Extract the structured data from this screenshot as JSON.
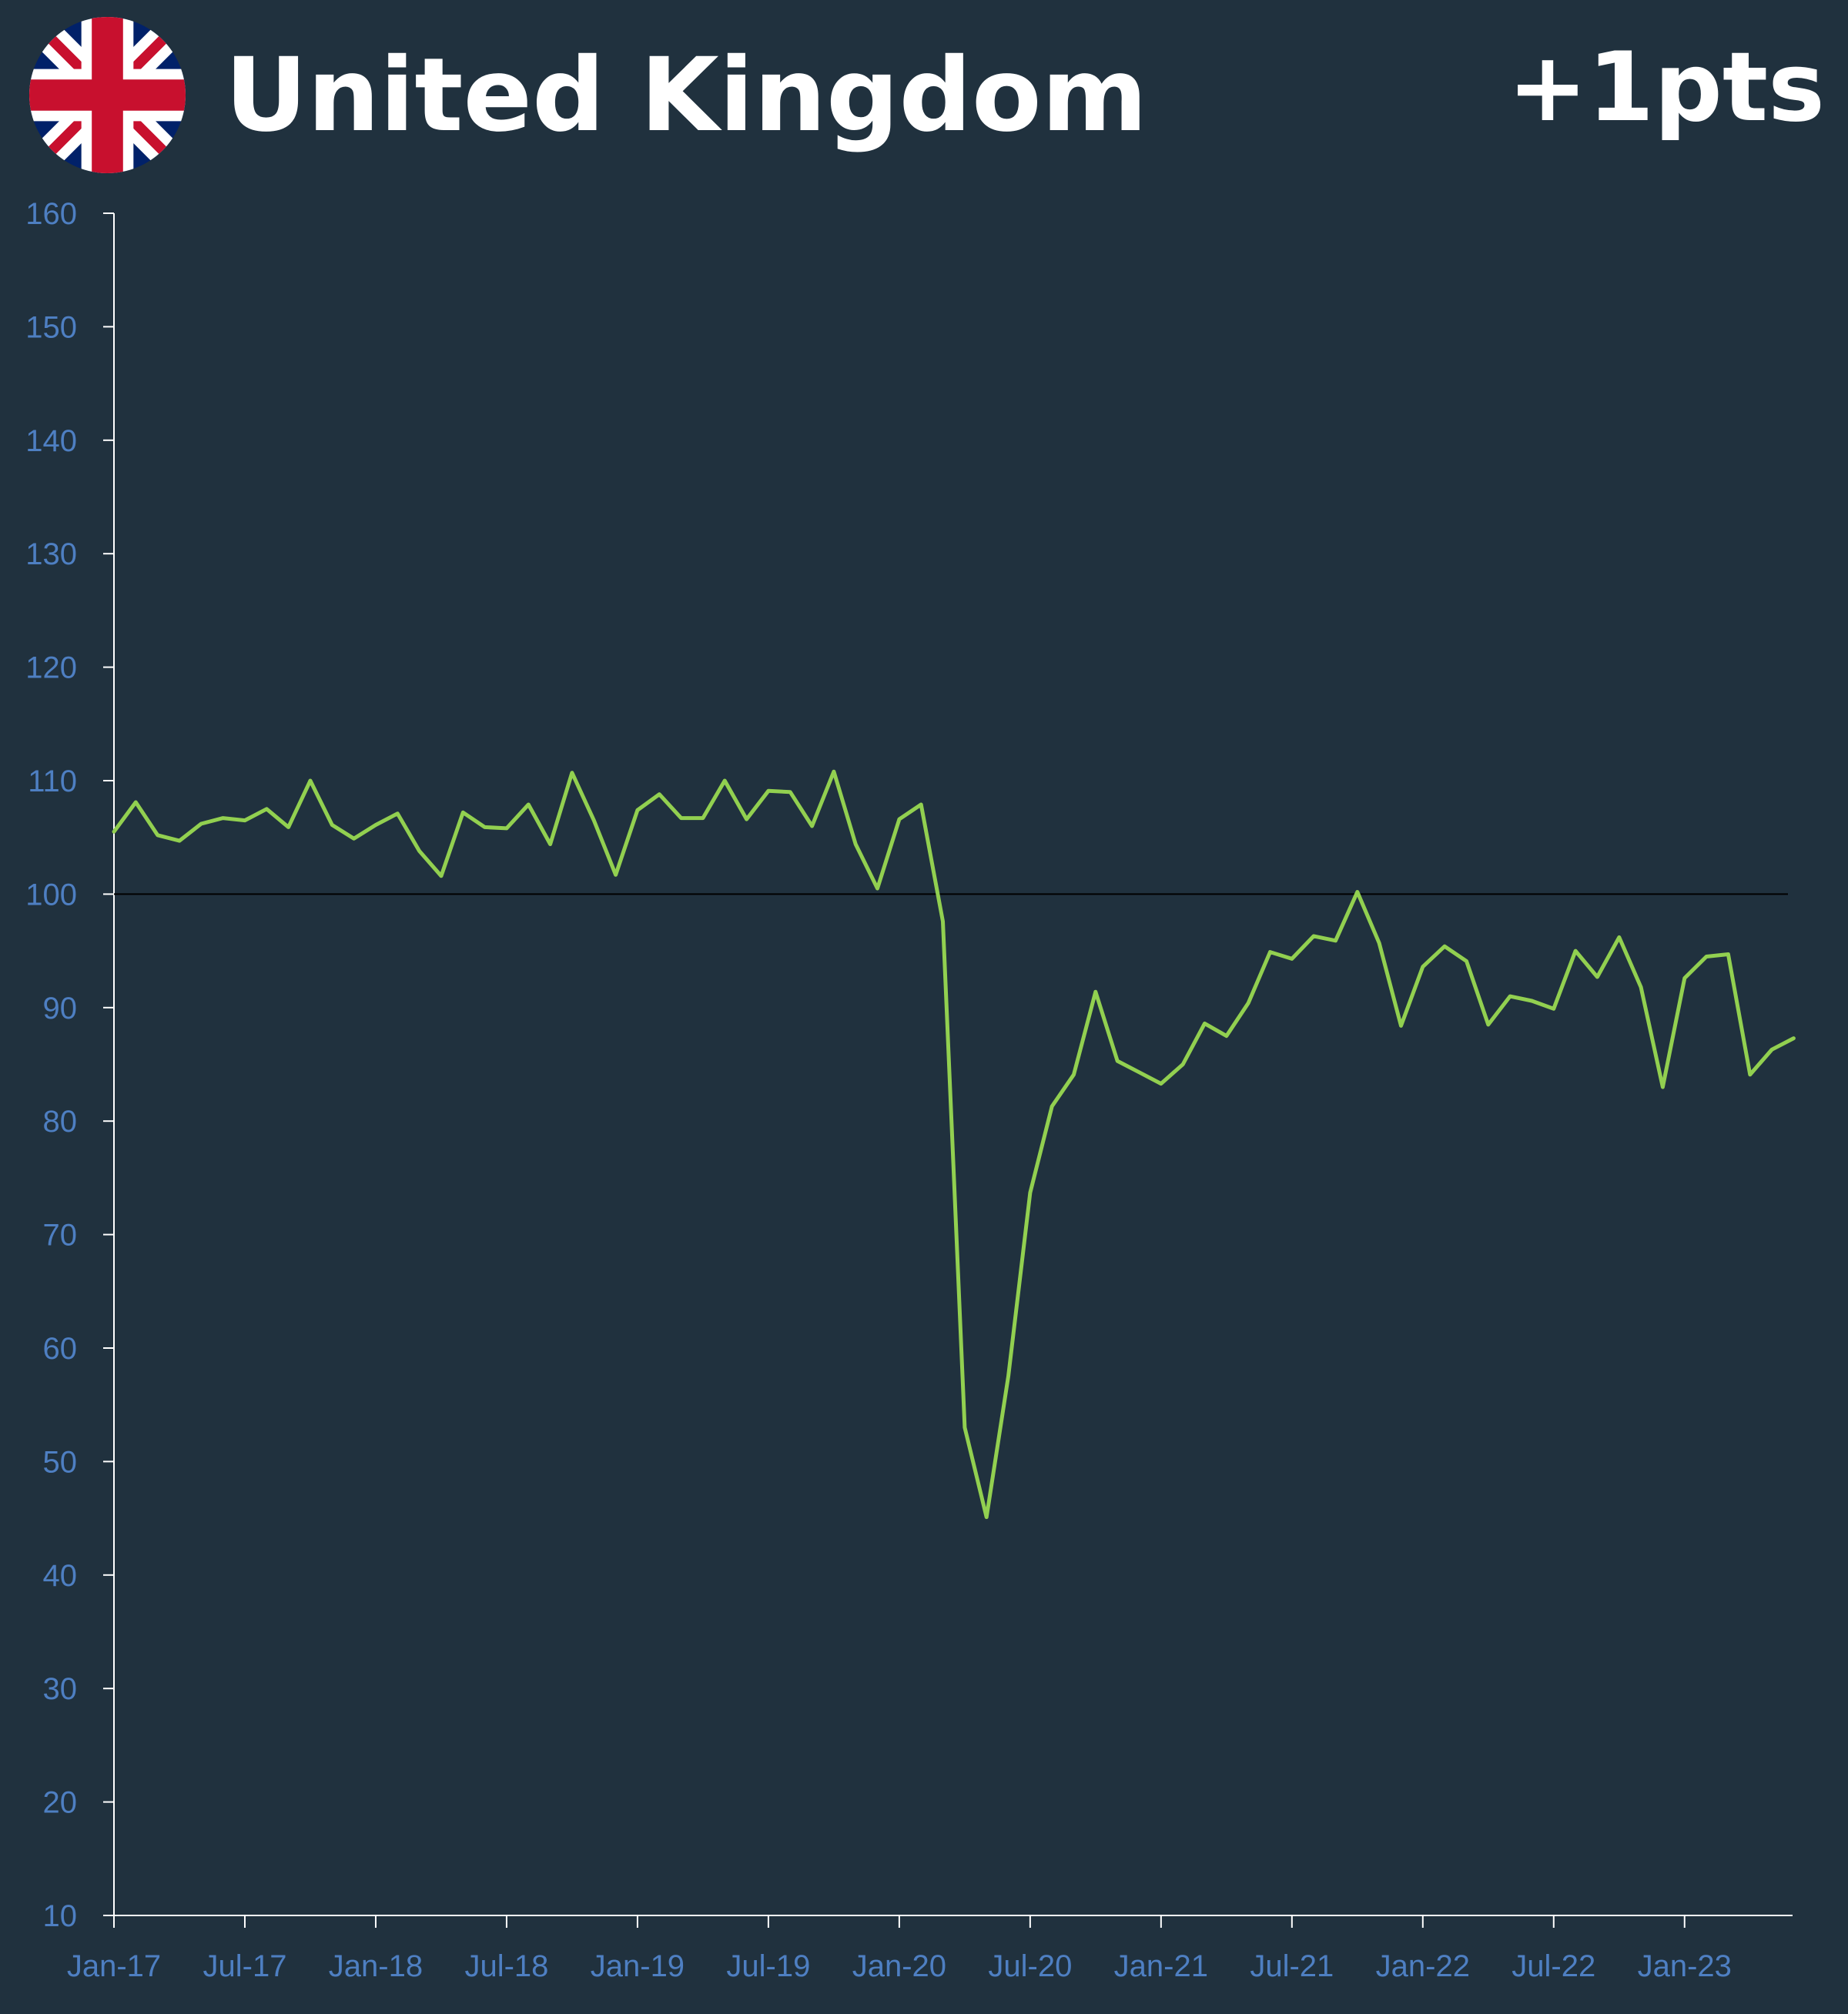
{
  "header": {
    "title": "United Kingdom",
    "change": "+1pts",
    "flag_icon": "uk-flag-icon"
  },
  "colors": {
    "background": "#20313e",
    "line": "#92d050",
    "axis_text": "#4e7fc2",
    "reference_line": "#000000"
  },
  "chart_data": {
    "type": "line",
    "title": "United Kingdom",
    "xlabel": "",
    "ylabel": "",
    "ylim": [
      10,
      160
    ],
    "yticks": [
      10,
      20,
      30,
      40,
      50,
      60,
      70,
      80,
      90,
      100,
      110,
      120,
      130,
      140,
      150,
      160
    ],
    "xtick_labels": [
      "Jan-17",
      "Jul-17",
      "Jan-18",
      "Jul-18",
      "Jan-19",
      "Jul-19",
      "Jan-20",
      "Jul-20",
      "Jan-21",
      "Jul-21",
      "Jan-22",
      "Jul-22",
      "Jan-23"
    ],
    "reference_line": 100,
    "grid": false,
    "legend": "none",
    "x": [
      "Jan-17",
      "Feb-17",
      "Mar-17",
      "Apr-17",
      "May-17",
      "Jun-17",
      "Jul-17",
      "Aug-17",
      "Sep-17",
      "Oct-17",
      "Nov-17",
      "Dec-17",
      "Jan-18",
      "Feb-18",
      "Mar-18",
      "Apr-18",
      "May-18",
      "Jun-18",
      "Jul-18",
      "Aug-18",
      "Sep-18",
      "Oct-18",
      "Nov-18",
      "Dec-18",
      "Jan-19",
      "Feb-19",
      "Mar-19",
      "Apr-19",
      "May-19",
      "Jun-19",
      "Jul-19",
      "Aug-19",
      "Sep-19",
      "Oct-19",
      "Nov-19",
      "Dec-19",
      "Jan-20",
      "Feb-20",
      "Mar-20",
      "Apr-20",
      "May-20",
      "Jun-20",
      "Jul-20",
      "Aug-20",
      "Sep-20",
      "Oct-20",
      "Nov-20",
      "Dec-20",
      "Jan-21",
      "Feb-21",
      "Mar-21",
      "Apr-21",
      "May-21",
      "Jun-21",
      "Jul-21",
      "Aug-21",
      "Sep-21",
      "Oct-21",
      "Nov-21",
      "Dec-21",
      "Jan-22",
      "Feb-22",
      "Mar-22",
      "Apr-22",
      "May-22",
      "Jun-22",
      "Jul-22",
      "Aug-22",
      "Sep-22",
      "Oct-22",
      "Nov-22",
      "Dec-22",
      "Jan-23",
      "Feb-23",
      "Mar-23",
      "Apr-23",
      "May-23",
      "Jun-23"
    ],
    "series": [
      {
        "values": [
          105.5,
          108.1,
          105.2,
          104.7,
          106.2,
          106.7,
          106.5,
          107.5,
          105.9,
          110.0,
          106.1,
          104.9,
          106.1,
          107.1,
          103.8,
          101.6,
          107.2,
          105.9,
          105.8,
          107.9,
          104.4,
          110.7,
          106.5,
          101.7,
          107.4,
          108.8,
          106.7,
          106.7,
          110.0,
          106.6,
          109.1,
          109.0,
          106.0,
          110.8,
          104.4,
          100.5,
          106.6,
          107.9,
          97.6,
          53.0,
          45.1,
          57.5,
          73.7,
          81.3,
          84.1,
          91.4,
          85.3,
          84.3,
          83.3,
          85.0,
          88.6,
          87.5,
          90.4,
          94.9,
          94.3,
          96.3,
          95.9,
          100.2,
          95.7,
          88.4,
          93.6,
          95.4,
          94.1,
          88.5,
          91.0,
          90.6,
          89.9,
          95.0,
          92.7,
          96.2,
          91.8,
          83.0,
          92.6,
          94.5,
          94.7,
          84.1,
          86.3,
          87.3
        ]
      }
    ]
  }
}
